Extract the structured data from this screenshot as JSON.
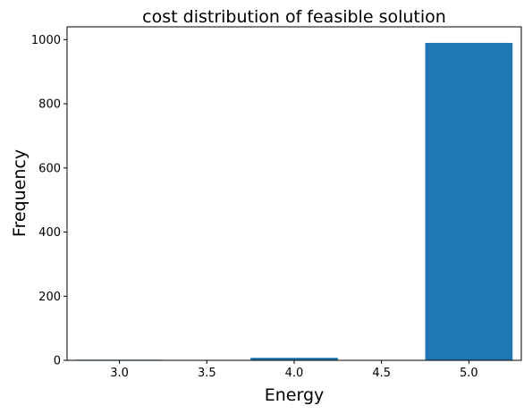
{
  "chart_data": {
    "type": "bar",
    "title": "cost distribution of feasible solution",
    "xlabel": "Energy",
    "ylabel": "Frequency",
    "x": [
      3.0,
      4.0,
      5.0
    ],
    "values": [
      2,
      8,
      990
    ],
    "bar_width": 0.5,
    "bar_color": "#1f77b4",
    "xlim": [
      2.7,
      5.3
    ],
    "ylim": [
      0,
      1040
    ],
    "xticks": [
      3.0,
      3.5,
      4.0,
      4.5,
      5.0
    ],
    "xtick_labels": [
      "3.0",
      "3.5",
      "4.0",
      "4.5",
      "5.0"
    ],
    "yticks": [
      0,
      200,
      400,
      600,
      800,
      1000
    ],
    "ytick_labels": [
      "0",
      "200",
      "400",
      "600",
      "800",
      "1000"
    ],
    "grid": false,
    "legend": "none"
  }
}
